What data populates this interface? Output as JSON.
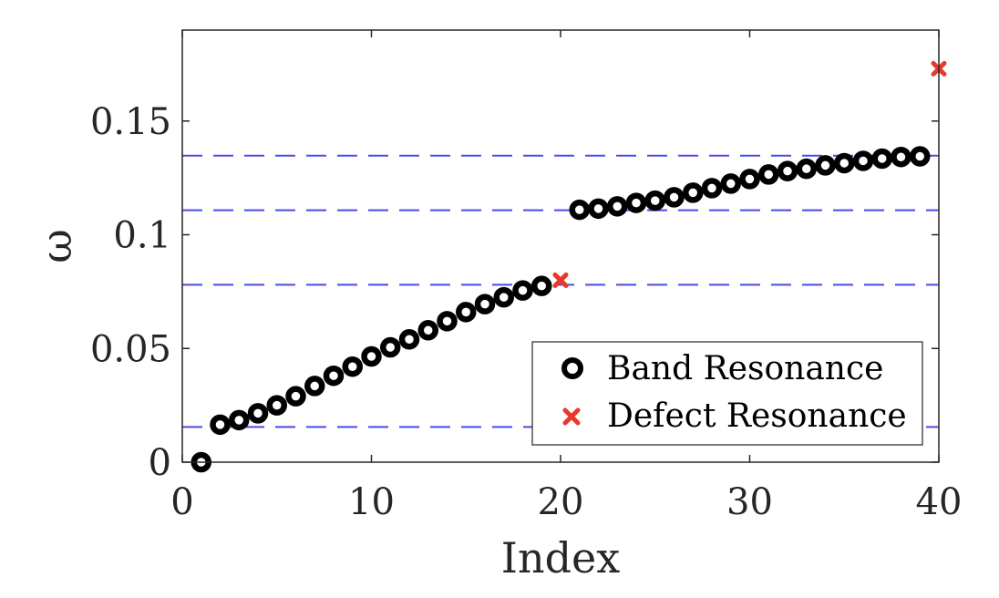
{
  "chart_data": {
    "type": "scatter",
    "xlabel": "Index",
    "ylabel": "ω",
    "xlim": [
      0,
      40
    ],
    "ylim": [
      0,
      0.19
    ],
    "xticks": [
      0,
      10,
      20,
      30,
      40
    ],
    "xtick_labels": [
      "0",
      "10",
      "20",
      "30",
      "40"
    ],
    "yticks": [
      0,
      0.05,
      0.1,
      0.15
    ],
    "ytick_labels": [
      "0",
      "0.05",
      "0.1",
      "0.15"
    ],
    "grid": false,
    "legend_position": "bottom-right",
    "reference_lines": {
      "y": [
        0.0155,
        0.078,
        0.1108,
        0.1348
      ],
      "style": "dashed",
      "color": "#4a4ae8"
    },
    "series": [
      {
        "name": "Band Resonance",
        "marker": "circle",
        "color": "#000000",
        "x": [
          1,
          2,
          3,
          4,
          5,
          6,
          7,
          8,
          9,
          10,
          11,
          12,
          13,
          14,
          15,
          16,
          17,
          18,
          19,
          21,
          22,
          23,
          24,
          25,
          26,
          27,
          28,
          29,
          30,
          31,
          32,
          33,
          34,
          35,
          36,
          37,
          38,
          39
        ],
        "y": [
          0.0,
          0.0165,
          0.0185,
          0.0215,
          0.025,
          0.029,
          0.0335,
          0.038,
          0.042,
          0.0465,
          0.0505,
          0.054,
          0.058,
          0.062,
          0.066,
          0.0695,
          0.0725,
          0.0755,
          0.0775,
          0.111,
          0.1115,
          0.1125,
          0.114,
          0.115,
          0.1165,
          0.1185,
          0.1205,
          0.1225,
          0.1245,
          0.1265,
          0.128,
          0.129,
          0.1305,
          0.1315,
          0.1325,
          0.1335,
          0.1342,
          0.1345
        ]
      },
      {
        "name": "Defect Resonance",
        "marker": "x",
        "color": "#e8392b",
        "x": [
          20,
          40
        ],
        "y": [
          0.08,
          0.173
        ]
      }
    ]
  }
}
